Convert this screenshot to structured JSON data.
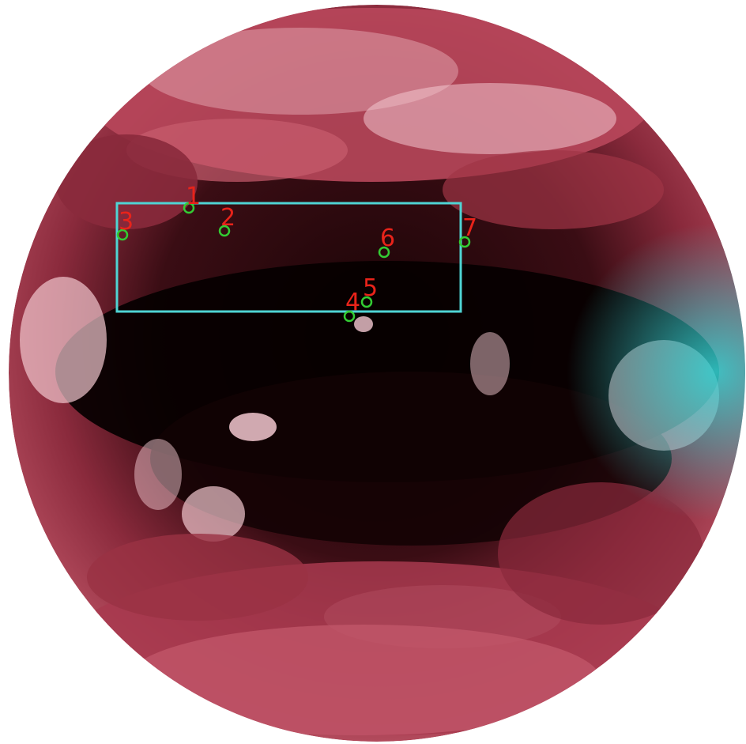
{
  "colors": {
    "background": "#ffffff",
    "cloud_tint": "#f2c7cf",
    "land_tint": "#a83a4f",
    "clear_ocean": "#050000",
    "limb_cyan": "#33d6d6",
    "box_stroke": "#4fd4d4",
    "marker_circle": "#33cc33",
    "marker_label": "#e8231a"
  },
  "selection_box": {
    "stroke_color": "#4fd4d4"
  },
  "markers": [
    {
      "id": "marker-1",
      "label": "1"
    },
    {
      "id": "marker-2",
      "label": "2"
    },
    {
      "id": "marker-3",
      "label": "3"
    },
    {
      "id": "marker-4",
      "label": "4"
    },
    {
      "id": "marker-5",
      "label": "5"
    },
    {
      "id": "marker-6",
      "label": "6"
    },
    {
      "id": "marker-7",
      "label": "7"
    }
  ]
}
